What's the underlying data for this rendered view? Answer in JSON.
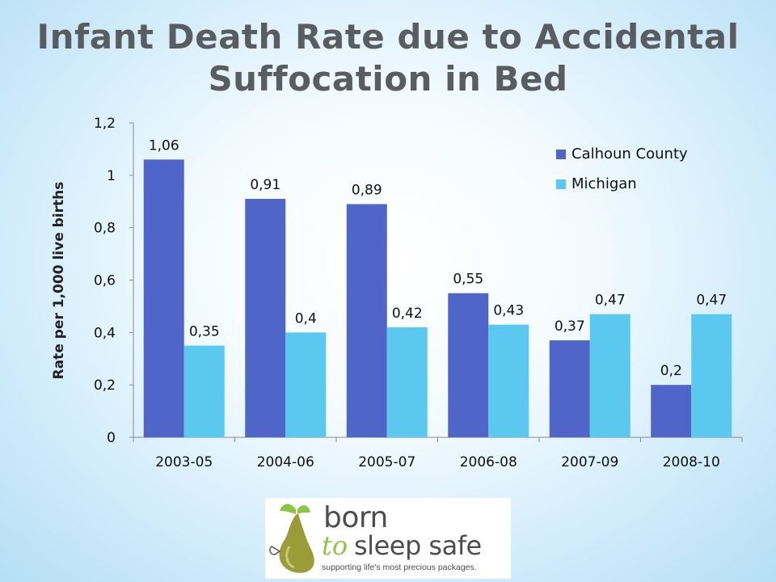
{
  "slide": {
    "title": "Infant Death Rate due to Accidental Suffocation in Bed"
  },
  "chart_data": {
    "type": "bar",
    "title": "",
    "xlabel": "",
    "ylabel": "Rate per 1,000 live births",
    "categories": [
      "2003-05",
      "2004-06",
      "2005-07",
      "2006-08",
      "2007-09",
      "2008-10"
    ],
    "series": [
      {
        "name": "Calhoun County",
        "values": [
          1.06,
          0.91,
          0.89,
          0.55,
          0.37,
          0.2
        ],
        "labels": [
          "1,06",
          "0,91",
          "0,89",
          "0,55",
          "0,37",
          "0,2"
        ],
        "color": "#4f66c8"
      },
      {
        "name": "Michigan",
        "values": [
          0.35,
          0.4,
          0.42,
          0.43,
          0.47,
          0.47
        ],
        "labels": [
          "0,35",
          "0,4",
          "0,42",
          "0,43",
          "0,47",
          "0,47"
        ],
        "color": "#5bc8ef"
      }
    ],
    "ylim": [
      0,
      1.2
    ],
    "yticks": [
      0,
      0.2,
      0.4,
      0.6,
      0.8,
      1,
      1.2
    ],
    "ytick_labels": [
      "0",
      "0,2",
      "0,4",
      "0,6",
      "0,8",
      "1",
      "1,2"
    ],
    "grid": false,
    "legend": "top-right"
  },
  "logo": {
    "line1": "born",
    "line2a": "to",
    "line2b": "sleep safe",
    "tagline": "supporting life's most precious packages."
  }
}
